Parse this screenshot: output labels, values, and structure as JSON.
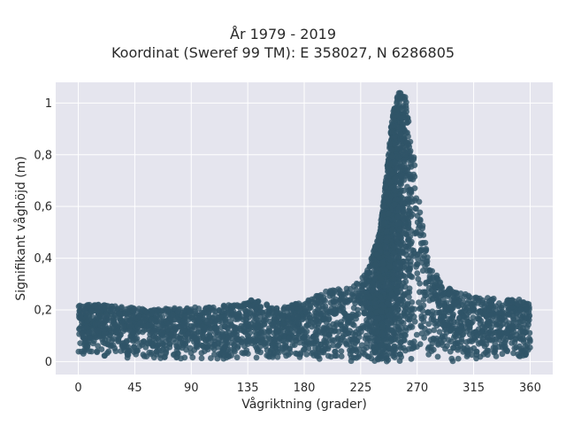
{
  "chart_data": {
    "type": "scatter",
    "title_line1": "År 1979 - 2019",
    "title_line2": "Koordinat (Sweref 99 TM): E 358027, N 6286805",
    "xlabel": "Vågriktning (grader)",
    "ylabel": "Signifikant våghöjd (m)",
    "xlim": [
      -18,
      378
    ],
    "ylim": [
      -0.05,
      1.08
    ],
    "x_ticks": [
      0,
      45,
      90,
      135,
      180,
      225,
      270,
      315,
      360
    ],
    "x_tick_labels": [
      "0",
      "45",
      "90",
      "135",
      "180",
      "225",
      "270",
      "315",
      "360"
    ],
    "y_ticks": [
      0,
      0.2,
      0.4,
      0.6,
      0.8,
      1
    ],
    "y_tick_labels": [
      "0",
      "0,2",
      "0,4",
      "0,6",
      "0,8",
      "1"
    ],
    "grid": true,
    "marker_color": "#2f5468",
    "plot_background": "#e5e5ee",
    "envelope": {
      "direction": [
        0,
        20,
        40,
        60,
        80,
        100,
        120,
        140,
        160,
        180,
        200,
        220,
        230,
        240,
        245,
        250,
        255,
        260,
        265,
        270,
        275,
        280,
        290,
        300,
        320,
        340,
        360
      ],
      "max_height": [
        0.22,
        0.22,
        0.21,
        0.2,
        0.21,
        0.21,
        0.22,
        0.24,
        0.21,
        0.23,
        0.28,
        0.3,
        0.35,
        0.5,
        0.7,
        0.95,
        1.04,
        1.04,
        0.9,
        0.7,
        0.5,
        0.38,
        0.3,
        0.27,
        0.25,
        0.24,
        0.24
      ],
      "min_height": [
        0.03,
        0.02,
        0.01,
        0.01,
        0.01,
        0.01,
        0.01,
        0.01,
        0.01,
        0.01,
        0.0,
        0.0,
        0.0,
        0.0,
        0.0,
        0.0,
        0.0,
        0.0,
        0.0,
        0.0,
        0.0,
        0.0,
        0.0,
        0.0,
        0.01,
        0.01,
        0.02
      ]
    }
  }
}
